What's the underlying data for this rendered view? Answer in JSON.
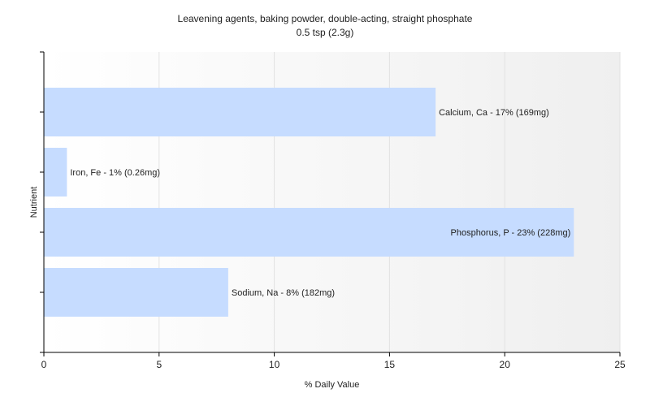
{
  "chart_data": {
    "type": "bar",
    "orientation": "horizontal",
    "title": "Leavening agents, baking powder, double-acting, straight phosphate",
    "subtitle": "0.5 tsp (2.3g)",
    "xlabel": "% Daily Value",
    "ylabel": "Nutrient",
    "xlim": [
      0,
      25
    ],
    "xticks": [
      0,
      5,
      10,
      15,
      20,
      25
    ],
    "grid": true,
    "bar_color": "#c6dcff",
    "bars": [
      {
        "value": 17,
        "label": "Calcium, Ca - 17% (169mg)"
      },
      {
        "value": 1,
        "label": "Iron, Fe - 1% (0.26mg)"
      },
      {
        "value": 23,
        "label": "Phosphorus, P - 23% (228mg)"
      },
      {
        "value": 8,
        "label": "Sodium, Na - 8% (182mg)"
      }
    ]
  }
}
